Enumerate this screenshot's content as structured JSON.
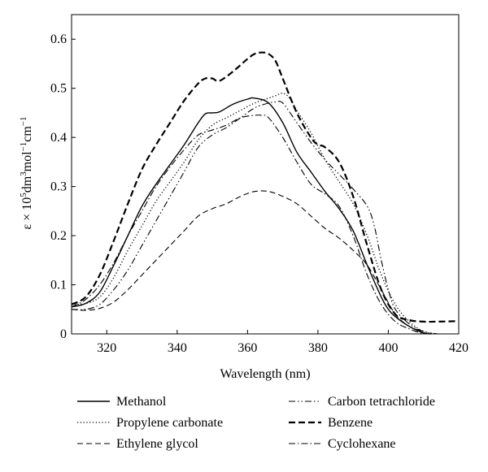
{
  "chart_data": {
    "type": "line",
    "xlabel": "Wavelength (nm)",
    "ylabel": {
      "prefix": "ε × 10",
      "exp1": "5",
      "mid1": "dm",
      "exp2": "3",
      "mid2": "mol",
      "exp3": "−1",
      "mid3": "cm",
      "exp4": "−1"
    },
    "xlim": [
      310,
      420
    ],
    "ylim": [
      0,
      0.65
    ],
    "xticks": [
      320,
      340,
      360,
      380,
      400,
      420
    ],
    "yticks": [
      0,
      0.1,
      0.2,
      0.3,
      0.4,
      0.5,
      0.6
    ],
    "xtick_labels": [
      "320",
      "340",
      "360",
      "380",
      "400",
      "420"
    ],
    "ytick_labels": [
      "0",
      "0.1",
      "0.2",
      "0.3",
      "0.4",
      "0.5",
      "0.6"
    ],
    "grid": false,
    "legend_position": "bottom",
    "series": [
      {
        "name": "Methanol",
        "style": "solid",
        "x": [
          310,
          314,
          318,
          322,
          326,
          330,
          334,
          338,
          342,
          346,
          348,
          350,
          352,
          356,
          360,
          362,
          366,
          370,
          374,
          378,
          382,
          386,
          390,
          394,
          398,
          400,
          402,
          406,
          410,
          412
        ],
        "y": [
          0.055,
          0.062,
          0.085,
          0.14,
          0.2,
          0.26,
          0.305,
          0.345,
          0.385,
          0.43,
          0.448,
          0.45,
          0.452,
          0.468,
          0.478,
          0.48,
          0.47,
          0.43,
          0.37,
          0.33,
          0.29,
          0.255,
          0.21,
          0.14,
          0.075,
          0.05,
          0.035,
          0.015,
          0.002,
          0
        ]
      },
      {
        "name": "Propylene carbonate",
        "style": "dotted",
        "x": [
          310,
          314,
          318,
          322,
          326,
          330,
          334,
          338,
          342,
          346,
          350,
          354,
          358,
          362,
          366,
          368,
          370,
          372,
          374,
          378,
          382,
          386,
          390,
          394,
          398,
          402,
          406,
          410,
          414
        ],
        "y": [
          0.06,
          0.062,
          0.075,
          0.115,
          0.17,
          0.22,
          0.27,
          0.31,
          0.35,
          0.395,
          0.425,
          0.44,
          0.455,
          0.47,
          0.48,
          0.485,
          0.49,
          0.48,
          0.455,
          0.41,
          0.355,
          0.31,
          0.265,
          0.2,
          0.12,
          0.06,
          0.025,
          0.005,
          0
        ]
      },
      {
        "name": "Ethylene glycol",
        "style": "dashed",
        "x": [
          310,
          314,
          318,
          322,
          326,
          330,
          334,
          338,
          342,
          346,
          350,
          354,
          358,
          362,
          366,
          370,
          374,
          378,
          382,
          386,
          390,
          394,
          398,
          402,
          406,
          410
        ],
        "y": [
          0.05,
          0.048,
          0.052,
          0.065,
          0.09,
          0.12,
          0.15,
          0.18,
          0.21,
          0.24,
          0.255,
          0.265,
          0.28,
          0.29,
          0.29,
          0.28,
          0.265,
          0.24,
          0.215,
          0.195,
          0.17,
          0.14,
          0.09,
          0.04,
          0.015,
          0.005
        ]
      },
      {
        "name": "Carbon tetrachloride",
        "style": "dash-dot-dot",
        "x": [
          310,
          314,
          318,
          322,
          326,
          330,
          334,
          338,
          342,
          346,
          350,
          354,
          358,
          362,
          366,
          368,
          370,
          374,
          378,
          382,
          386,
          390,
          394,
          396,
          398,
          400,
          402,
          406,
          410,
          414
        ],
        "y": [
          0.05,
          0.05,
          0.06,
          0.09,
          0.13,
          0.18,
          0.23,
          0.28,
          0.33,
          0.38,
          0.405,
          0.42,
          0.44,
          0.46,
          0.47,
          0.472,
          0.47,
          0.43,
          0.39,
          0.355,
          0.325,
          0.295,
          0.26,
          0.22,
          0.15,
          0.09,
          0.05,
          0.02,
          0.005,
          0
        ]
      },
      {
        "name": "Benzene",
        "style": "bold-dashed",
        "x": [
          310,
          314,
          318,
          322,
          326,
          330,
          334,
          338,
          342,
          346,
          348,
          350,
          352,
          356,
          360,
          362,
          364,
          366,
          368,
          370,
          374,
          378,
          380,
          382,
          386,
          390,
          394,
          398,
          402,
          406,
          410,
          414,
          420
        ],
        "y": [
          0.06,
          0.075,
          0.12,
          0.19,
          0.265,
          0.335,
          0.385,
          0.43,
          0.475,
          0.51,
          0.52,
          0.52,
          0.515,
          0.535,
          0.56,
          0.57,
          0.573,
          0.57,
          0.555,
          0.52,
          0.45,
          0.4,
          0.385,
          0.38,
          0.35,
          0.28,
          0.18,
          0.09,
          0.04,
          0.028,
          0.025,
          0.025,
          0.026
        ]
      },
      {
        "name": "Cyclohexane",
        "style": "dash-dot",
        "x": [
          310,
          314,
          318,
          322,
          326,
          330,
          334,
          338,
          342,
          346,
          350,
          354,
          358,
          362,
          364,
          366,
          370,
          374,
          378,
          382,
          386,
          390,
          394,
          398,
          402,
          406,
          410
        ],
        "y": [
          0.055,
          0.07,
          0.1,
          0.145,
          0.2,
          0.25,
          0.3,
          0.34,
          0.375,
          0.405,
          0.415,
          0.425,
          0.44,
          0.445,
          0.445,
          0.44,
          0.4,
          0.35,
          0.305,
          0.285,
          0.26,
          0.2,
          0.12,
          0.06,
          0.025,
          0.01,
          0
        ]
      }
    ]
  }
}
